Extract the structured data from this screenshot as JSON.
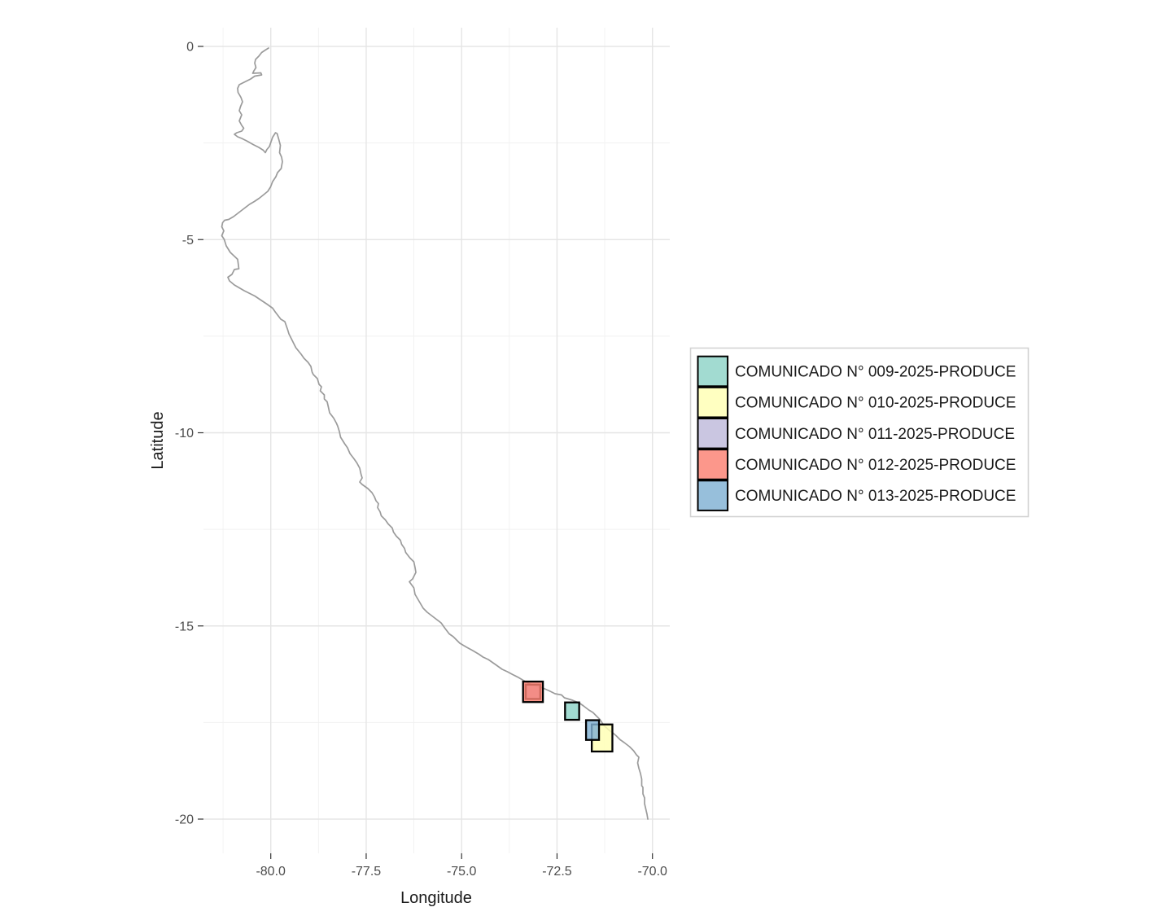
{
  "chart_data": {
    "type": "map",
    "description": "Coastline map of Peru with fishing-closure zone rectangles",
    "xlabel": "Longitude",
    "ylabel": "Latitude",
    "xlim": [
      -81.7,
      -69.6
    ],
    "ylim": [
      -20.55,
      0.45
    ],
    "grid": true,
    "legend_position": "right",
    "x_ticks": {
      "values": [
        -80,
        -77.5,
        -75,
        -72.5,
        -70
      ],
      "labels": [
        "-80.0",
        "-77.5",
        "-75.0",
        "-72.5",
        "-70.0"
      ]
    },
    "y_ticks": {
      "values": [
        0,
        -5,
        -10,
        -15,
        -20
      ],
      "labels": [
        "0",
        "-5",
        "-10",
        "-15",
        "-20"
      ]
    },
    "x_minor": [
      -81.25,
      -78.75,
      -76.25,
      -73.75,
      -71.25
    ],
    "y_minor": [
      -2.5,
      -7.5,
      -12.5,
      -17.5
    ],
    "coastline_color": "#9b9b9b",
    "zone_outline_color": "#000000",
    "zones": [
      {
        "id": "009",
        "label": "COMUNICADO N° 009-2025-PRODUCE",
        "color": "#8DD3C7",
        "lon": [
          -72.29,
          -71.92
        ],
        "lat": [
          -17.43,
          -16.98
        ]
      },
      {
        "id": "010",
        "label": "COMUNICADO N° 010-2025-PRODUCE",
        "color": "#FFFFB3",
        "lon": [
          -71.59,
          -71.05
        ],
        "lat": [
          -18.25,
          -17.55
        ]
      },
      {
        "id": "011",
        "label": "COMUNICADO N° 011-2025-PRODUCE",
        "color": "#BEBADA",
        "lon": [
          -73.32,
          -72.94
        ],
        "lat": [
          -16.89,
          -16.52
        ]
      },
      {
        "id": "012",
        "label": "COMUNICADO N° 012-2025-PRODUCE",
        "color": "#FB8072",
        "lon": [
          -73.39,
          -72.87
        ],
        "lat": [
          -16.97,
          -16.44
        ]
      },
      {
        "id": "013",
        "label": "COMUNICADO N° 013-2025-PRODUCE",
        "color": "#80B1D3",
        "lon": [
          -71.74,
          -71.4
        ],
        "lat": [
          -17.95,
          -17.44
        ]
      }
    ]
  }
}
